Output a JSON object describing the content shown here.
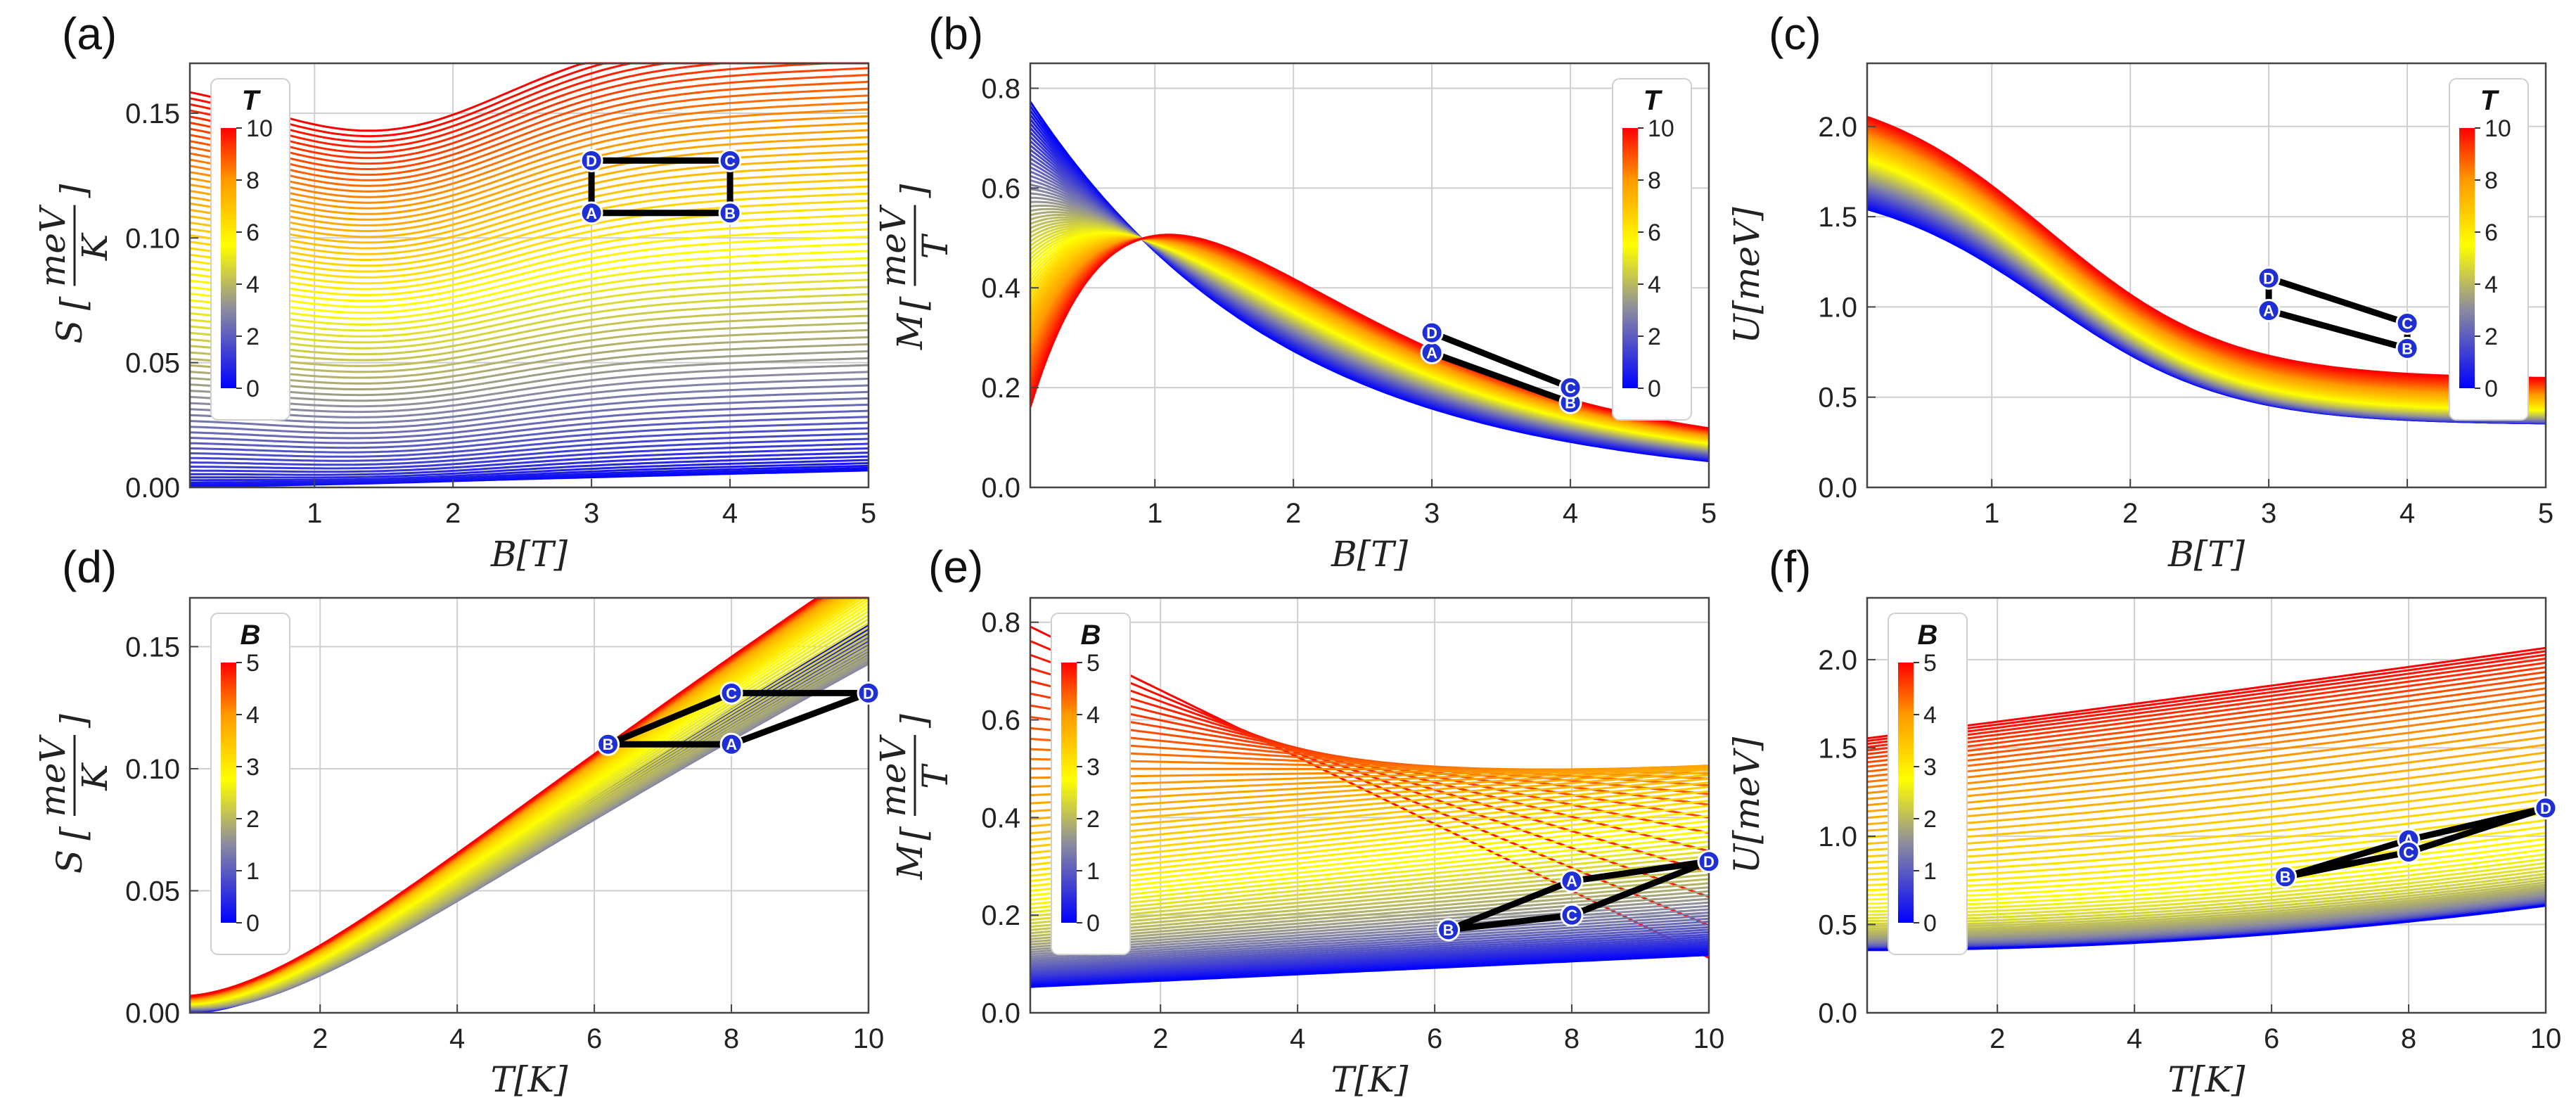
{
  "figure": {
    "description_panels": [
      "a",
      "b",
      "c",
      "d",
      "e",
      "f"
    ]
  },
  "chart_data": [
    {
      "id": "a",
      "panel_label": "(a)",
      "type": "line",
      "family": "B",
      "xlabel": "B[T]",
      "ylabel": "S",
      "ylabel_unit_num": "meV",
      "ylabel_unit_den": "K",
      "xlim": [
        0.1,
        5
      ],
      "ylim": [
        0,
        0.17
      ],
      "xticks": [
        1,
        2,
        3,
        4,
        5
      ],
      "xtick_labels": [
        "1",
        "2",
        "3",
        "4",
        "5"
      ],
      "yticks": [
        0,
        0.05,
        0.1,
        0.15
      ],
      "ytick_labels": [
        "0.00",
        "0.05",
        "0.10",
        "0.15"
      ],
      "colorbar": {
        "title": "T",
        "range": [
          0,
          10
        ],
        "ticks": [
          "0",
          "2",
          "4",
          "6",
          "8",
          "10"
        ],
        "position": "top-left"
      },
      "cycle": {
        "labels": [
          "A",
          "B",
          "C",
          "D"
        ],
        "x": [
          3,
          4,
          4,
          3
        ],
        "y": [
          0.11,
          0.11,
          0.131,
          0.131
        ]
      }
    },
    {
      "id": "b",
      "panel_label": "(b)",
      "type": "line",
      "family": "B",
      "xlabel": "B[T]",
      "ylabel": "M",
      "ylabel_unit_num": "meV",
      "ylabel_unit_den": "T",
      "xlim": [
        0.1,
        5
      ],
      "ylim": [
        0,
        0.85
      ],
      "xticks": [
        1,
        2,
        3,
        4,
        5
      ],
      "xtick_labels": [
        "1",
        "2",
        "3",
        "4",
        "5"
      ],
      "yticks": [
        0,
        0.2,
        0.4,
        0.6,
        0.8
      ],
      "ytick_labels": [
        "0.0",
        "0.2",
        "0.4",
        "0.6",
        "0.8"
      ],
      "colorbar": {
        "title": "T",
        "range": [
          0,
          10
        ],
        "ticks": [
          "0",
          "2",
          "4",
          "6",
          "8",
          "10"
        ],
        "position": "top-right"
      },
      "cycle": {
        "labels": [
          "A",
          "B",
          "C",
          "D"
        ],
        "x": [
          3,
          4,
          4,
          3
        ],
        "y": [
          0.27,
          0.17,
          0.2,
          0.31
        ]
      }
    },
    {
      "id": "c",
      "panel_label": "(c)",
      "type": "line",
      "family": "B",
      "xlabel": "B[T]",
      "ylabel": "U[meV]",
      "ylabel_unit_num": "",
      "ylabel_unit_den": "",
      "xlim": [
        0.1,
        5
      ],
      "ylim": [
        0,
        2.35
      ],
      "xticks": [
        1,
        2,
        3,
        4,
        5
      ],
      "xtick_labels": [
        "1",
        "2",
        "3",
        "4",
        "5"
      ],
      "yticks": [
        0,
        0.5,
        1.0,
        1.5,
        2.0
      ],
      "ytick_labels": [
        "0.0",
        "0.5",
        "1.0",
        "1.5",
        "2.0"
      ],
      "colorbar": {
        "title": "T",
        "range": [
          0,
          10
        ],
        "ticks": [
          "0",
          "2",
          "4",
          "6",
          "8",
          "10"
        ],
        "position": "top-right"
      },
      "cycle": {
        "labels": [
          "A",
          "B",
          "C",
          "D"
        ],
        "x": [
          3,
          4,
          4,
          3
        ],
        "y": [
          0.98,
          0.77,
          0.91,
          1.16
        ]
      }
    },
    {
      "id": "d",
      "panel_label": "(d)",
      "type": "line",
      "family": "T",
      "xlabel": "T[K]",
      "ylabel": "S",
      "ylabel_unit_num": "meV",
      "ylabel_unit_den": "K",
      "xlim": [
        0.1,
        10
      ],
      "ylim": [
        0,
        0.17
      ],
      "xticks": [
        2,
        4,
        6,
        8,
        10
      ],
      "xtick_labels": [
        "2",
        "4",
        "6",
        "8",
        "10"
      ],
      "yticks": [
        0,
        0.05,
        0.1,
        0.15
      ],
      "ytick_labels": [
        "0.00",
        "0.05",
        "0.10",
        "0.15"
      ],
      "colorbar": {
        "title": "B",
        "range": [
          0,
          5
        ],
        "ticks": [
          "0",
          "1",
          "2",
          "3",
          "4",
          "5"
        ],
        "position": "top-left"
      },
      "cycle": {
        "labels": [
          "A",
          "B",
          "C",
          "D"
        ],
        "x": [
          8,
          6.2,
          8,
          10
        ],
        "y": [
          0.11,
          0.11,
          0.131,
          0.131
        ]
      }
    },
    {
      "id": "e",
      "panel_label": "(e)",
      "type": "line",
      "family": "T",
      "xlabel": "T[K]",
      "ylabel": "M",
      "ylabel_unit_num": "meV",
      "ylabel_unit_den": "T",
      "xlim": [
        0.1,
        10
      ],
      "ylim": [
        0,
        0.85
      ],
      "xticks": [
        2,
        4,
        6,
        8,
        10
      ],
      "xtick_labels": [
        "2",
        "4",
        "6",
        "8",
        "10"
      ],
      "yticks": [
        0,
        0.2,
        0.4,
        0.6,
        0.8
      ],
      "ytick_labels": [
        "0.0",
        "0.2",
        "0.4",
        "0.6",
        "0.8"
      ],
      "colorbar": {
        "title": "B",
        "range": [
          0,
          5
        ],
        "ticks": [
          "0",
          "1",
          "2",
          "3",
          "4",
          "5"
        ],
        "position": "top-left"
      },
      "cycle": {
        "labels": [
          "A",
          "B",
          "C",
          "D"
        ],
        "x": [
          8,
          6.2,
          8,
          10
        ],
        "y": [
          0.27,
          0.17,
          0.2,
          0.31
        ]
      }
    },
    {
      "id": "f",
      "panel_label": "(f)",
      "type": "line",
      "family": "T",
      "xlabel": "T[K]",
      "ylabel": "U[meV]",
      "ylabel_unit_num": "",
      "ylabel_unit_den": "",
      "xlim": [
        0.1,
        10
      ],
      "ylim": [
        0,
        2.35
      ],
      "xticks": [
        2,
        4,
        6,
        8,
        10
      ],
      "xtick_labels": [
        "2",
        "4",
        "6",
        "8",
        "10"
      ],
      "yticks": [
        0,
        0.5,
        1.0,
        1.5,
        2.0
      ],
      "ytick_labels": [
        "0.0",
        "0.5",
        "1.0",
        "1.5",
        "2.0"
      ],
      "colorbar": {
        "title": "B",
        "range": [
          0,
          5
        ],
        "ticks": [
          "0",
          "1",
          "2",
          "3",
          "4",
          "5"
        ],
        "position": "top-left"
      },
      "cycle": {
        "labels": [
          "A",
          "B",
          "C",
          "D"
        ],
        "x": [
          8,
          6.2,
          8,
          10
        ],
        "y": [
          0.98,
          0.77,
          0.91,
          1.16
        ]
      }
    }
  ]
}
